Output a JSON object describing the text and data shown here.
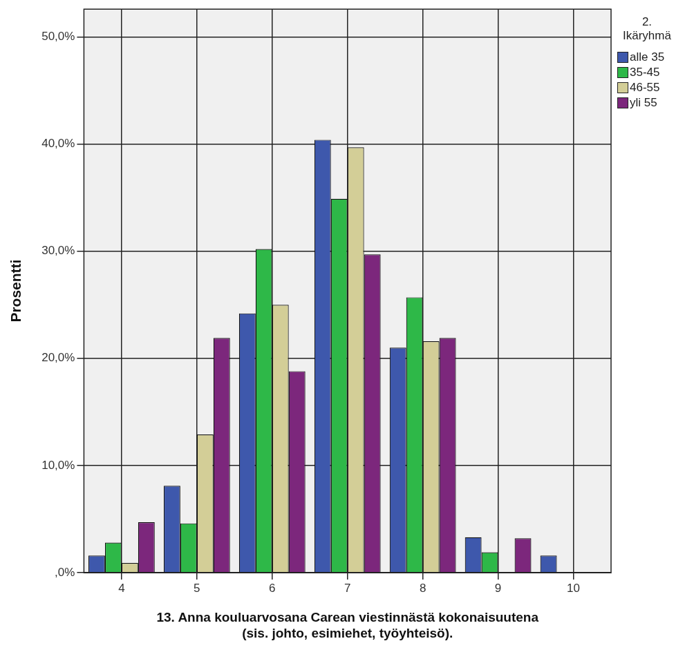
{
  "chart_data": {
    "type": "bar",
    "xlabel": "13. Anna kouluarvosana Carean viestinnästä kokonaisuutena\n(sis. johto, esimiehet, työyhteisö).",
    "ylabel": "Prosentti",
    "legend_title": "2. Ikäryhmä",
    "legend": "top right",
    "grid": true,
    "categories": [
      "4",
      "5",
      "6",
      "7",
      "8",
      "9",
      "10"
    ],
    "ylim": [
      0,
      52.6
    ],
    "yticks": [
      {
        "value": 0,
        "label": ",0%"
      },
      {
        "value": 10,
        "label": "10,0%"
      },
      {
        "value": 20,
        "label": "20,0%"
      },
      {
        "value": 30,
        "label": "30,0%"
      },
      {
        "value": 40,
        "label": "40,0%"
      },
      {
        "value": 50,
        "label": "50,0%"
      }
    ],
    "series": [
      {
        "name": "alle 35",
        "color": "#3e58ac",
        "values": [
          1.6,
          8.1,
          24.2,
          40.4,
          21.0,
          3.3,
          1.6
        ]
      },
      {
        "name": "35-45",
        "color": "#2eb848",
        "values": [
          2.8,
          4.6,
          30.2,
          34.9,
          25.7,
          1.9,
          0
        ]
      },
      {
        "name": "46-55",
        "color": "#d3ce97",
        "values": [
          0.9,
          12.9,
          25.0,
          39.7,
          21.6,
          0,
          0
        ]
      },
      {
        "name": "yli 55",
        "color": "#7c277c",
        "values": [
          4.7,
          21.9,
          18.8,
          29.7,
          21.9,
          3.2,
          0
        ]
      }
    ]
  }
}
